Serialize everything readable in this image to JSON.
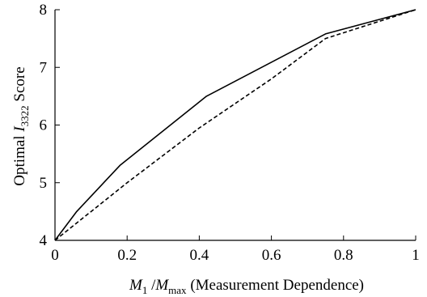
{
  "chart_data": {
    "type": "line",
    "xlabel": {
      "var1": "M",
      "sub1": "1",
      "slash": " /",
      "var2": "M",
      "sub2": "max",
      "rest": " (Measurement Dependence)"
    },
    "ylabel": {
      "pre": "Optimal ",
      "var": "I",
      "sub": "3322",
      "post": " Score"
    },
    "xlim": [
      0,
      1
    ],
    "ylim": [
      4,
      8
    ],
    "x_ticks": [
      "0",
      "0.2",
      "0.4",
      "0.6",
      "0.8",
      "1"
    ],
    "y_ticks": [
      "4",
      "5",
      "6",
      "7",
      "8"
    ],
    "grid": false,
    "legend": "none",
    "series": [
      {
        "style": "solid",
        "color": "#000000",
        "x": [
          0,
          0.06,
          0.18,
          0.42,
          0.75,
          1.0
        ],
        "y": [
          4.0,
          4.5,
          5.3,
          6.5,
          7.58,
          8.0
        ]
      },
      {
        "style": "dashed",
        "color": "#000000",
        "x": [
          0,
          0.2,
          0.4,
          0.6,
          0.75,
          1.0
        ],
        "y": [
          4.0,
          5.0,
          5.95,
          6.8,
          7.5,
          8.0
        ]
      }
    ]
  }
}
